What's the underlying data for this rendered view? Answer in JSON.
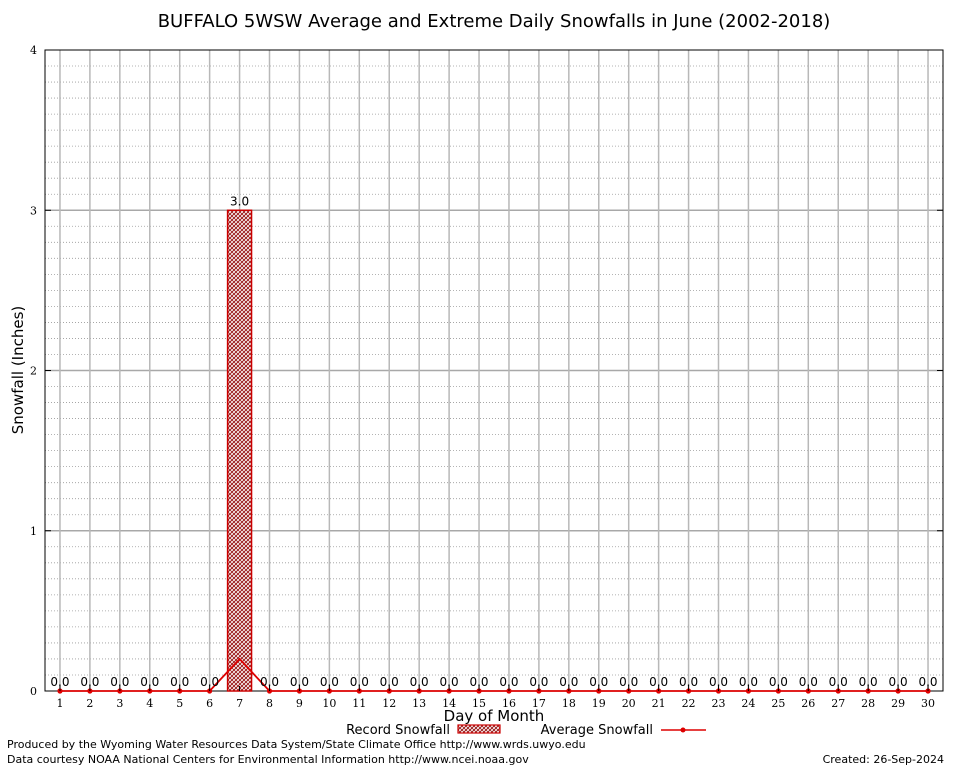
{
  "chart_data": {
    "type": "bar",
    "title": "BUFFALO 5WSW Average and Extreme Daily Snowfalls in June (2002-2018)",
    "xlabel": "Day of Month",
    "ylabel": "Snowfall (Inches)",
    "ylim": [
      0,
      4
    ],
    "yticks": [
      "0",
      "1",
      "2",
      "3",
      "4"
    ],
    "categories": [
      "1",
      "2",
      "3",
      "4",
      "5",
      "6",
      "7",
      "8",
      "9",
      "10",
      "11",
      "12",
      "13",
      "14",
      "15",
      "16",
      "17",
      "18",
      "19",
      "20",
      "21",
      "22",
      "23",
      "24",
      "25",
      "26",
      "27",
      "28",
      "29",
      "30"
    ],
    "grid": true,
    "legend_position": "bottom",
    "series": [
      {
        "name": "Record Snowfall",
        "kind": "bar",
        "color": "#cc0000",
        "values": [
          0,
          0,
          0,
          0,
          0,
          0,
          3.0,
          0,
          0,
          0,
          0,
          0,
          0,
          0,
          0,
          0,
          0,
          0,
          0,
          0,
          0,
          0,
          0,
          0,
          0,
          0,
          0,
          0,
          0,
          0
        ],
        "labels": [
          "0.0",
          "0.0",
          "0.0",
          "0.0",
          "0.0",
          "0.0",
          "3.0",
          "0.0",
          "0.0",
          "0.0",
          "0.0",
          "0.0",
          "0.0",
          "0.0",
          "0.0",
          "0.0",
          "0.0",
          "0.0",
          "0.0",
          "0.0",
          "0.0",
          "0.0",
          "0.0",
          "0.0",
          "0.0",
          "0.0",
          "0.0",
          "0.0",
          "0.0",
          "0.0"
        ]
      },
      {
        "name": "Average Snowfall",
        "kind": "line",
        "color": "#dd0000",
        "values": [
          0,
          0,
          0,
          0,
          0,
          0,
          0.2,
          0,
          0,
          0,
          0,
          0,
          0,
          0,
          0,
          0,
          0,
          0,
          0,
          0,
          0,
          0,
          0,
          0,
          0,
          0,
          0,
          0,
          0,
          0
        ]
      }
    ]
  },
  "footer": {
    "produced_by": "Produced by the Wyoming Water Resources Data System/State Climate Office http://www.wrds.uwyo.edu",
    "courtesy": "Data courtesy NOAA National Centers for Environmental Information http://www.ncei.noaa.gov",
    "created": "Created:  26-Sep-2024"
  }
}
